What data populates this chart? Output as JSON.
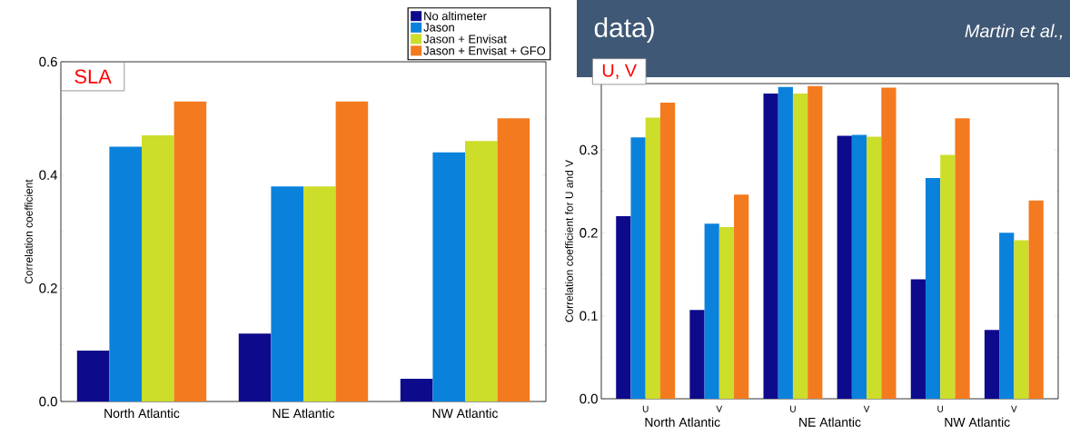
{
  "chart_data": [
    {
      "type": "bar",
      "title": "SLA",
      "ylabel": "Correlation coefficient",
      "categories": [
        "North Atlantic",
        "NE Atlantic",
        "NW Atlantic"
      ],
      "series": [
        {
          "name": "No altimeter",
          "color": "#0d0a8c",
          "values": [
            0.09,
            0.12,
            0.04
          ]
        },
        {
          "name": "Jason",
          "color": "#0a82dc",
          "values": [
            0.45,
            0.38,
            0.44
          ]
        },
        {
          "name": "Jason + Envisat",
          "color": "#ccdd2a",
          "values": [
            0.47,
            0.38,
            0.46
          ]
        },
        {
          "name": "Jason + Envisat + GFO",
          "color": "#f47a1f",
          "values": [
            0.53,
            0.53,
            0.5
          ]
        }
      ],
      "ylim": [
        0,
        0.6
      ],
      "yticks": [
        {
          "value": 0,
          "label": "0.0"
        },
        0.2,
        0.4,
        0.6
      ],
      "legend": "top right"
    },
    {
      "type": "bar",
      "title": "U, V",
      "ylabel": "Correlation coefficient for U and V",
      "categories": [
        "U",
        "V",
        "U",
        "V",
        "U",
        "V"
      ],
      "series": [
        {
          "color": "#0d0a8c",
          "values": [
            0.22,
            0.107,
            0.368,
            0.317,
            0.144,
            0.083
          ]
        },
        {
          "color": "#0a82dc",
          "values": [
            0.315,
            0.211,
            0.376,
            0.318,
            0.266,
            0.2
          ]
        },
        {
          "color": "#ccdd2a",
          "values": [
            0.339,
            0.207,
            0.368,
            0.316,
            0.294,
            0.191
          ]
        },
        {
          "color": "#f47a1f",
          "values": [
            0.357,
            0.246,
            0.377,
            0.375,
            0.338,
            0.239
          ]
        }
      ],
      "ylim": [
        0,
        0.38
      ],
      "yticks": [
        {
          "value": 0,
          "label": "0.0"
        },
        0.1,
        0.2,
        0.3
      ],
      "annotations": [
        "North Atlantic",
        "NE Atlantic",
        "NW Atlantic",
        "data)",
        "Martin et al.,"
      ]
    }
  ]
}
